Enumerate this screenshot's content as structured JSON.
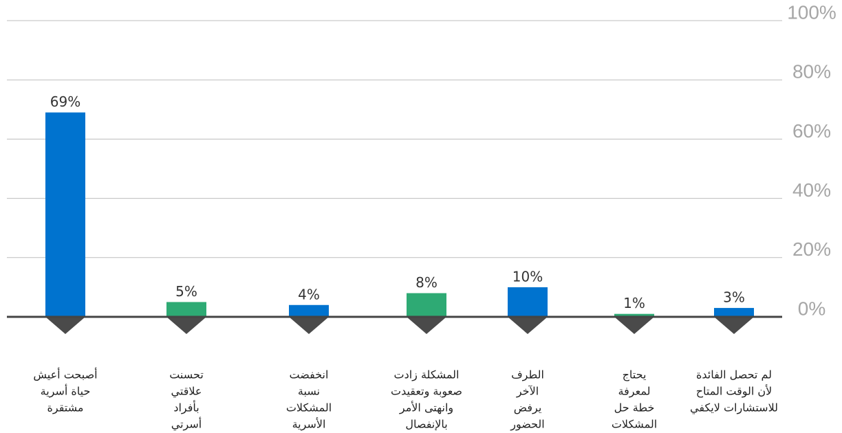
{
  "chart_data": {
    "type": "bar",
    "categories": [
      [
        "أصبحت أعيش",
        "حياة أسرية",
        "مشتقرة"
      ],
      [
        "تحسنت",
        "علاقتي",
        "بأفراد",
        "أسرتي"
      ],
      [
        "انخفضت",
        "نسبة",
        "المشكلات",
        "الأسرية"
      ],
      [
        "المشكلة زادت",
        "صعوبة وتعقيدت",
        "وانهتى الأمر",
        "بالإنفصال"
      ],
      [
        "الطرف",
        "الآخر",
        "يرفض",
        "الحضور"
      ],
      [
        "يحتاج",
        "لمعرفة",
        "خطة حل",
        "المشكلات"
      ],
      [
        "لم تحصل الفائدة",
        "لأن الوقت المتاح",
        "للاستشارات لايكفي"
      ]
    ],
    "values": [
      69,
      5,
      4,
      8,
      10,
      1,
      3
    ],
    "value_labels": [
      "69%",
      "5%",
      "4%",
      "8%",
      "10%",
      "1%",
      "3%"
    ],
    "colors": [
      "#0073cf",
      "#2eaa74",
      "#0073cf",
      "#2eaa74",
      "#0073cf",
      "#2eaa74",
      "#0073cf"
    ],
    "ylim": [
      0,
      100
    ],
    "yticks": [
      {
        "value": 0,
        "label": "0%"
      },
      {
        "value": 20,
        "label": "20%"
      },
      {
        "value": 40,
        "label": "40%"
      },
      {
        "value": 60,
        "label": "60%"
      },
      {
        "value": 80,
        "label": "80%"
      },
      {
        "value": 100,
        "label": "100%"
      }
    ],
    "grid": true
  }
}
